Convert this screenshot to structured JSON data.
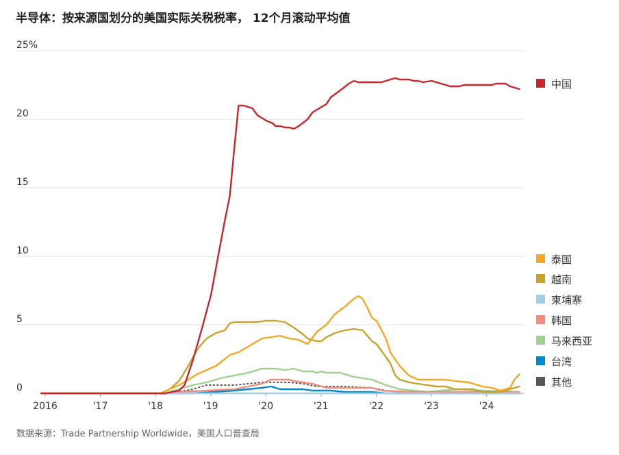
{
  "chart_data": {
    "type": "line",
    "title": "半导体：按来源国划分的美国实际关税税率， 12个月滚动平均值",
    "source": "数据来源：Trade Partnership Worldwide，美国人口普查局",
    "ylim": [
      0,
      25
    ],
    "xlim": [
      2016.0,
      2024.75
    ],
    "y_ticks": [
      {
        "value": 0,
        "label": "0"
      },
      {
        "value": 5,
        "label": "5"
      },
      {
        "value": 10,
        "label": "10"
      },
      {
        "value": 15,
        "label": "15"
      },
      {
        "value": 20,
        "label": "20"
      },
      {
        "value": 25,
        "label": "25%"
      }
    ],
    "x_ticks": [
      {
        "value": 2016,
        "label": "2016"
      },
      {
        "value": 2017,
        "label": "'17"
      },
      {
        "value": 2018,
        "label": "'18"
      },
      {
        "value": 2019,
        "label": "'19"
      },
      {
        "value": 2020,
        "label": "'20"
      },
      {
        "value": 2021,
        "label": "'21"
      },
      {
        "value": 2022,
        "label": "'22"
      },
      {
        "value": 2023,
        "label": "'23"
      },
      {
        "value": 2024,
        "label": "'24"
      }
    ],
    "grid": true,
    "legend_position": "right",
    "series": [
      {
        "name": "中国",
        "color": "#c9252c",
        "style": "solid",
        "points": [
          [
            2016.0,
            0
          ],
          [
            2018.25,
            0
          ],
          [
            2018.5,
            0.2
          ],
          [
            2018.6,
            0.6
          ],
          [
            2018.75,
            2.4
          ],
          [
            2018.92,
            4.8
          ],
          [
            2019.08,
            7.2
          ],
          [
            2019.2,
            9.8
          ],
          [
            2019.33,
            12.6
          ],
          [
            2019.42,
            14.4
          ],
          [
            2019.5,
            17.8
          ],
          [
            2019.58,
            21.0
          ],
          [
            2019.67,
            21.0
          ],
          [
            2019.83,
            20.8
          ],
          [
            2019.92,
            20.3
          ],
          [
            2020.08,
            19.9
          ],
          [
            2020.2,
            19.7
          ],
          [
            2020.25,
            19.5
          ],
          [
            2020.33,
            19.5
          ],
          [
            2020.42,
            19.4
          ],
          [
            2020.5,
            19.4
          ],
          [
            2020.58,
            19.3
          ],
          [
            2020.67,
            19.5
          ],
          [
            2020.83,
            20.0
          ],
          [
            2020.92,
            20.5
          ],
          [
            2021.0,
            20.7
          ],
          [
            2021.17,
            21.1
          ],
          [
            2021.25,
            21.6
          ],
          [
            2021.42,
            22.1
          ],
          [
            2021.58,
            22.6
          ],
          [
            2021.67,
            22.8
          ],
          [
            2021.75,
            22.7
          ],
          [
            2022.0,
            22.7
          ],
          [
            2022.17,
            22.7
          ],
          [
            2022.33,
            22.9
          ],
          [
            2022.42,
            23.0
          ],
          [
            2022.5,
            22.9
          ],
          [
            2022.67,
            22.9
          ],
          [
            2022.75,
            22.8
          ],
          [
            2022.83,
            22.8
          ],
          [
            2022.92,
            22.7
          ],
          [
            2023.08,
            22.8
          ],
          [
            2023.25,
            22.6
          ],
          [
            2023.42,
            22.4
          ],
          [
            2023.58,
            22.4
          ],
          [
            2023.67,
            22.5
          ],
          [
            2024.0,
            22.5
          ],
          [
            2024.17,
            22.5
          ],
          [
            2024.25,
            22.6
          ],
          [
            2024.42,
            22.6
          ],
          [
            2024.5,
            22.4
          ],
          [
            2024.67,
            22.2
          ]
        ]
      },
      {
        "name": "泰国",
        "color": "#f5a623",
        "style": "solid",
        "points": [
          [
            2016.0,
            0
          ],
          [
            2018.17,
            0
          ],
          [
            2018.33,
            0.3
          ],
          [
            2018.5,
            0.6
          ],
          [
            2018.67,
            1.0
          ],
          [
            2018.83,
            1.4
          ],
          [
            2019.0,
            1.7
          ],
          [
            2019.17,
            2.0
          ],
          [
            2019.33,
            2.5
          ],
          [
            2019.42,
            2.8
          ],
          [
            2019.58,
            3.0
          ],
          [
            2019.75,
            3.4
          ],
          [
            2020.0,
            4.0
          ],
          [
            2020.17,
            4.1
          ],
          [
            2020.33,
            4.2
          ],
          [
            2020.5,
            4.0
          ],
          [
            2020.67,
            3.9
          ],
          [
            2020.83,
            3.6
          ],
          [
            2021.0,
            4.5
          ],
          [
            2021.17,
            5.0
          ],
          [
            2021.33,
            5.8
          ],
          [
            2021.5,
            6.3
          ],
          [
            2021.67,
            6.9
          ],
          [
            2021.75,
            7.1
          ],
          [
            2021.83,
            6.9
          ],
          [
            2021.92,
            6.2
          ],
          [
            2022.0,
            5.5
          ],
          [
            2022.08,
            5.3
          ],
          [
            2022.25,
            4.0
          ],
          [
            2022.33,
            3.0
          ],
          [
            2022.5,
            2.0
          ],
          [
            2022.67,
            1.3
          ],
          [
            2022.83,
            1.0
          ],
          [
            2023.0,
            1.0
          ],
          [
            2023.17,
            1.0
          ],
          [
            2023.33,
            1.0
          ],
          [
            2023.5,
            0.9
          ],
          [
            2023.75,
            0.8
          ],
          [
            2024.0,
            0.5
          ],
          [
            2024.17,
            0.4
          ],
          [
            2024.33,
            0.2
          ],
          [
            2024.5,
            0.4
          ],
          [
            2024.58,
            1.0
          ],
          [
            2024.67,
            1.4
          ]
        ]
      },
      {
        "name": "越南",
        "color": "#c4a32d",
        "style": "solid",
        "points": [
          [
            2016.0,
            0
          ],
          [
            2018.17,
            0
          ],
          [
            2018.33,
            0.3
          ],
          [
            2018.5,
            0.9
          ],
          [
            2018.67,
            2.0
          ],
          [
            2018.83,
            3.2
          ],
          [
            2019.0,
            4.0
          ],
          [
            2019.17,
            4.4
          ],
          [
            2019.33,
            4.6
          ],
          [
            2019.42,
            5.1
          ],
          [
            2019.5,
            5.2
          ],
          [
            2019.75,
            5.2
          ],
          [
            2019.92,
            5.2
          ],
          [
            2020.08,
            5.3
          ],
          [
            2020.25,
            5.3
          ],
          [
            2020.42,
            5.2
          ],
          [
            2020.58,
            4.8
          ],
          [
            2020.75,
            4.3
          ],
          [
            2020.83,
            4.0
          ],
          [
            2021.0,
            3.8
          ],
          [
            2021.08,
            3.8
          ],
          [
            2021.17,
            4.1
          ],
          [
            2021.33,
            4.4
          ],
          [
            2021.5,
            4.6
          ],
          [
            2021.67,
            4.7
          ],
          [
            2021.83,
            4.6
          ],
          [
            2022.0,
            3.8
          ],
          [
            2022.08,
            3.6
          ],
          [
            2022.17,
            3.1
          ],
          [
            2022.33,
            2.2
          ],
          [
            2022.42,
            1.3
          ],
          [
            2022.5,
            1.0
          ],
          [
            2022.67,
            0.8
          ],
          [
            2022.83,
            0.7
          ],
          [
            2023.0,
            0.6
          ],
          [
            2023.17,
            0.5
          ],
          [
            2023.33,
            0.5
          ],
          [
            2023.5,
            0.3
          ],
          [
            2023.67,
            0.3
          ],
          [
            2023.83,
            0.3
          ],
          [
            2024.0,
            0.1
          ],
          [
            2024.33,
            0.1
          ],
          [
            2024.5,
            0.3
          ],
          [
            2024.67,
            0.5
          ]
        ]
      },
      {
        "name": "柬埔寨",
        "color": "#a6cde8",
        "style": "solid",
        "points": [
          [
            2016.0,
            0
          ],
          [
            2024.67,
            0
          ]
        ]
      },
      {
        "name": "韩国",
        "color": "#f08c7c",
        "style": "solid",
        "points": [
          [
            2016.0,
            0
          ],
          [
            2018.25,
            0
          ],
          [
            2018.5,
            0.1
          ],
          [
            2019.0,
            0.2
          ],
          [
            2019.5,
            0.3
          ],
          [
            2019.75,
            0.5
          ],
          [
            2020.0,
            0.7
          ],
          [
            2020.17,
            1.0
          ],
          [
            2020.5,
            1.0
          ],
          [
            2020.58,
            0.9
          ],
          [
            2020.75,
            0.8
          ],
          [
            2020.92,
            0.7
          ],
          [
            2021.0,
            0.6
          ],
          [
            2021.17,
            0.4
          ],
          [
            2021.5,
            0.4
          ],
          [
            2022.0,
            0.4
          ],
          [
            2022.17,
            0.2
          ],
          [
            2022.67,
            0.1
          ],
          [
            2024.67,
            0.1
          ]
        ]
      },
      {
        "name": "马来西亚",
        "color": "#9fd08f",
        "style": "solid",
        "points": [
          [
            2016.0,
            0
          ],
          [
            2018.25,
            0
          ],
          [
            2018.5,
            0.3
          ],
          [
            2018.75,
            0.6
          ],
          [
            2019.0,
            0.8
          ],
          [
            2019.25,
            1.1
          ],
          [
            2019.5,
            1.3
          ],
          [
            2019.75,
            1.5
          ],
          [
            2020.0,
            1.8
          ],
          [
            2020.25,
            1.8
          ],
          [
            2020.42,
            1.7
          ],
          [
            2020.58,
            1.8
          ],
          [
            2020.75,
            1.6
          ],
          [
            2020.92,
            1.6
          ],
          [
            2021.0,
            1.5
          ],
          [
            2021.08,
            1.6
          ],
          [
            2021.17,
            1.5
          ],
          [
            2021.42,
            1.5
          ],
          [
            2021.67,
            1.2
          ],
          [
            2022.0,
            1.0
          ],
          [
            2022.25,
            0.6
          ],
          [
            2022.5,
            0.3
          ],
          [
            2022.75,
            0.2
          ],
          [
            2023.0,
            0.1
          ],
          [
            2023.25,
            0.2
          ],
          [
            2023.58,
            0.3
          ],
          [
            2024.0,
            0.2
          ],
          [
            2024.67,
            0.1
          ]
        ]
      },
      {
        "name": "台湾",
        "color": "#0088cc",
        "style": "solid",
        "points": [
          [
            2016.0,
            0
          ],
          [
            2018.75,
            0
          ],
          [
            2019.5,
            0.2
          ],
          [
            2019.75,
            0.3
          ],
          [
            2020.0,
            0.4
          ],
          [
            2020.17,
            0.5
          ],
          [
            2020.33,
            0.3
          ],
          [
            2020.75,
            0.3
          ],
          [
            2020.92,
            0.2
          ],
          [
            2021.25,
            0.2
          ],
          [
            2021.5,
            0.1
          ],
          [
            2022.0,
            0.1
          ],
          [
            2022.25,
            0
          ],
          [
            2024.67,
            0
          ]
        ]
      },
      {
        "name": "其他",
        "color": "#555555",
        "style": "dotted",
        "points": [
          [
            2016.0,
            0
          ],
          [
            2018.33,
            0
          ],
          [
            2018.75,
            0.3
          ],
          [
            2019.0,
            0.6
          ],
          [
            2019.5,
            0.6
          ],
          [
            2020.0,
            0.8
          ],
          [
            2020.5,
            0.8
          ],
          [
            2020.75,
            0.7
          ],
          [
            2021.0,
            0.5
          ],
          [
            2021.5,
            0.5
          ],
          [
            2022.0,
            0.4
          ],
          [
            2022.25,
            0.2
          ],
          [
            2022.5,
            0.1
          ],
          [
            2024.67,
            0
          ]
        ]
      }
    ]
  }
}
